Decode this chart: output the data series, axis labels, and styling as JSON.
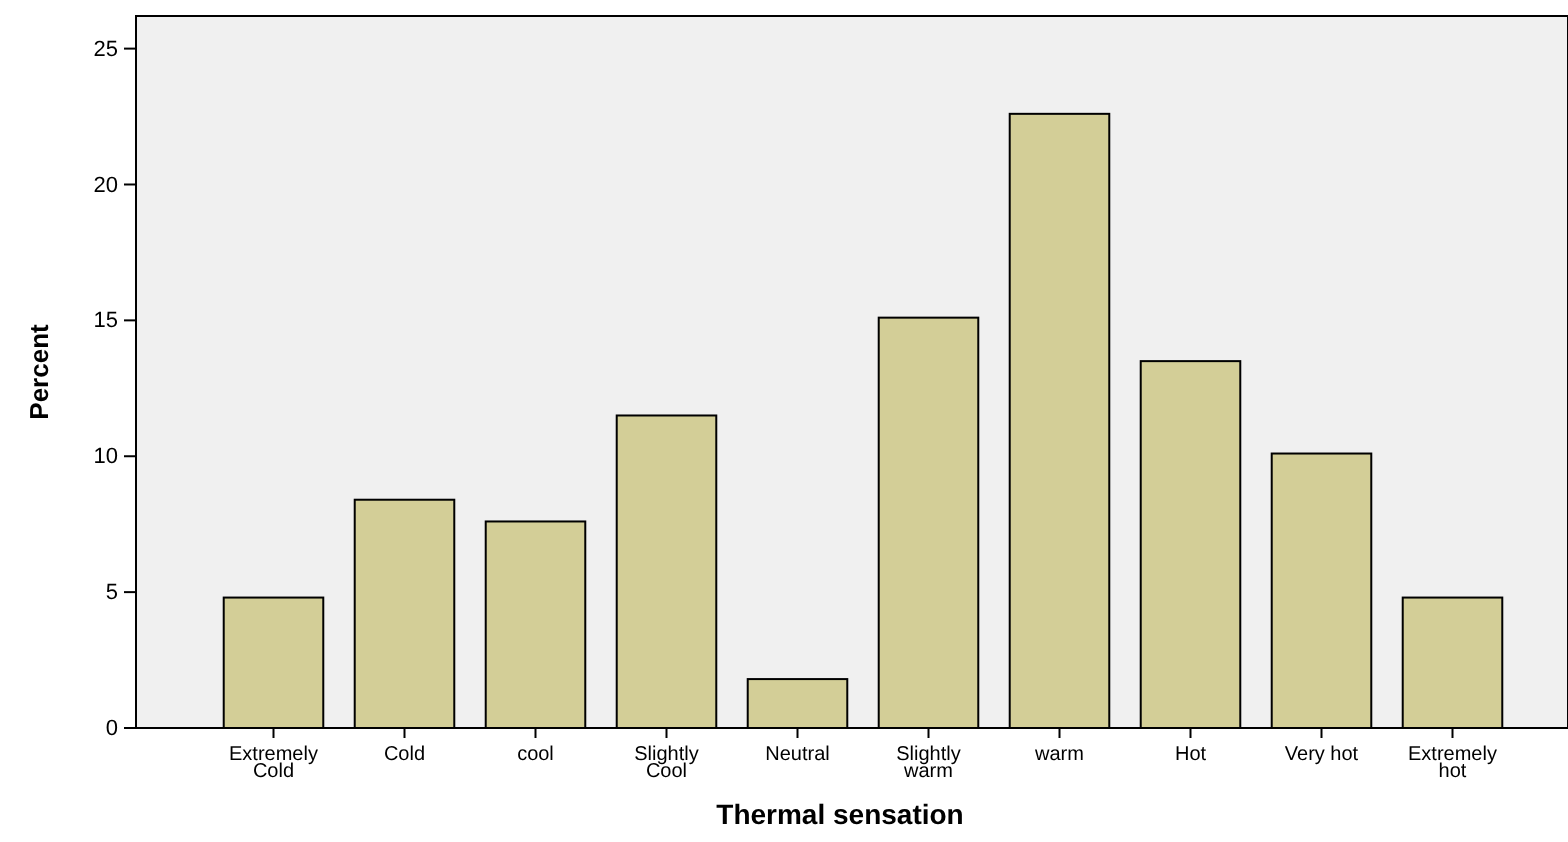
{
  "chart_data": {
    "type": "bar",
    "xlabel": "Thermal sensation",
    "ylabel": "Percent",
    "categories": [
      "Extremely Cold",
      "Cold",
      "cool",
      "Slightly Cool",
      "Neutral",
      "Slightly warm",
      "warm",
      "Hot",
      "Very hot",
      "Extremely hot"
    ],
    "values": [
      4.8,
      8.4,
      7.6,
      11.5,
      1.8,
      15.1,
      22.6,
      13.5,
      10.1,
      4.8
    ],
    "color": "#d3ce97",
    "ylim": [
      0,
      26.2
    ],
    "yticks": [
      0,
      5,
      10,
      15,
      20,
      25
    ],
    "grid": false
  }
}
